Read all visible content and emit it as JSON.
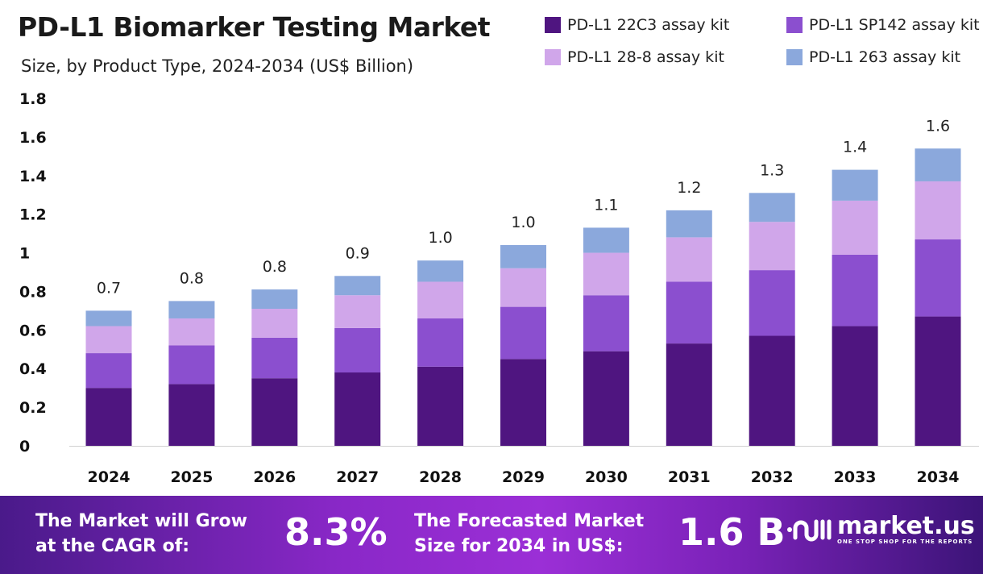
{
  "chart_data": {
    "type": "bar",
    "stacked": true,
    "title": "PD-L1 Biomarker Testing Market",
    "subtitle": "Size, by Product Type, 2024-2034 (US$ Billion)",
    "xlabel": "",
    "ylabel": "",
    "ylim": [
      0,
      1.8
    ],
    "yticks": [
      "0",
      "0.2",
      "0.4",
      "0.6",
      "0.8",
      "1",
      "1.2",
      "1.4",
      "1.6",
      "1.8"
    ],
    "grid": false,
    "legend_position": "top-right",
    "categories": [
      "2024",
      "2025",
      "2026",
      "2027",
      "2028",
      "2029",
      "2030",
      "2031",
      "2032",
      "2033",
      "2034"
    ],
    "series": [
      {
        "name": "PD-L1 22C3 assay kit",
        "color": "#4f1580",
        "values": [
          0.3,
          0.32,
          0.35,
          0.38,
          0.41,
          0.45,
          0.49,
          0.53,
          0.57,
          0.62,
          0.67
        ]
      },
      {
        "name": "PD-L1 SP142 assay kit",
        "color": "#8b4fcf",
        "values": [
          0.18,
          0.2,
          0.21,
          0.23,
          0.25,
          0.27,
          0.29,
          0.32,
          0.34,
          0.37,
          0.4
        ]
      },
      {
        "name": "PD-L1 28-8 assay kit",
        "color": "#d0a6ea",
        "values": [
          0.14,
          0.14,
          0.15,
          0.17,
          0.19,
          0.2,
          0.22,
          0.23,
          0.25,
          0.28,
          0.3
        ]
      },
      {
        "name": "PD-L1 263 assay kit",
        "color": "#8ba8dc",
        "values": [
          0.08,
          0.09,
          0.1,
          0.1,
          0.11,
          0.12,
          0.13,
          0.14,
          0.15,
          0.16,
          0.17
        ]
      }
    ],
    "total_labels": [
      "0.7",
      "0.8",
      "0.8",
      "0.9",
      "1.0",
      "1.0",
      "1.1",
      "1.2",
      "1.3",
      "1.4",
      "1.6"
    ]
  },
  "banner": {
    "cagr_text_1": "The Market will Grow",
    "cagr_text_2": "at the CAGR of:",
    "cagr_value": "8.3%",
    "forecast_text_1": "The Forecasted Market",
    "forecast_text_2": "Size for 2034 in US$:",
    "forecast_value": "1.6 B",
    "logo_name": "market.us",
    "logo_tagline": "ONE STOP SHOP FOR THE REPORTS"
  }
}
